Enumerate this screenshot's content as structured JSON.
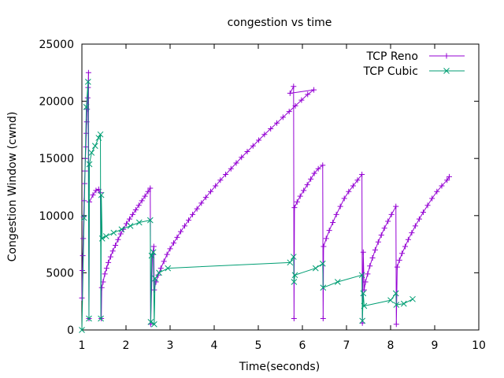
{
  "chart_data": {
    "type": "line",
    "title": "congestion vs time",
    "xlabel": "Time(seconds)",
    "ylabel": "Congestion Window (cwnd)",
    "xlim": [
      1,
      10
    ],
    "ylim": [
      0,
      25000
    ],
    "x_ticks": [
      1,
      2,
      3,
      4,
      5,
      6,
      7,
      8,
      9,
      10
    ],
    "y_ticks": [
      0,
      5000,
      10000,
      15000,
      20000,
      25000
    ],
    "legend_position": "top-right",
    "grid": false,
    "series": [
      {
        "name": "TCP Reno",
        "color": "#9400d3",
        "marker": "plus",
        "points": [
          [
            1.0,
            2800
          ],
          [
            1.01,
            5200
          ],
          [
            1.02,
            6500
          ],
          [
            1.03,
            8000
          ],
          [
            1.04,
            9900
          ],
          [
            1.05,
            11300
          ],
          [
            1.06,
            12800
          ],
          [
            1.07,
            13900
          ],
          [
            1.08,
            15000
          ],
          [
            1.09,
            16000
          ],
          [
            1.1,
            17200
          ],
          [
            1.11,
            18200
          ],
          [
            1.12,
            19300
          ],
          [
            1.13,
            20300
          ],
          [
            1.14,
            21200
          ],
          [
            1.15,
            22500
          ],
          [
            1.16,
            1000
          ],
          [
            1.17,
            11200
          ],
          [
            1.25,
            11800
          ],
          [
            1.32,
            12200
          ],
          [
            1.38,
            12300
          ],
          [
            1.42,
            12000
          ],
          [
            1.44,
            1000
          ],
          [
            1.45,
            3700
          ],
          [
            1.48,
            4200
          ],
          [
            1.52,
            4900
          ],
          [
            1.56,
            5400
          ],
          [
            1.6,
            5900
          ],
          [
            1.65,
            6400
          ],
          [
            1.7,
            6900
          ],
          [
            1.76,
            7400
          ],
          [
            1.82,
            7900
          ],
          [
            1.88,
            8400
          ],
          [
            1.94,
            8800
          ],
          [
            2.01,
            9300
          ],
          [
            2.08,
            9700
          ],
          [
            2.15,
            10100
          ],
          [
            2.22,
            10500
          ],
          [
            2.29,
            10900
          ],
          [
            2.36,
            11300
          ],
          [
            2.43,
            11700
          ],
          [
            2.5,
            12100
          ],
          [
            2.55,
            12400
          ],
          [
            2.56,
            500
          ],
          [
            2.6,
            6600
          ],
          [
            2.63,
            7300
          ],
          [
            2.64,
            3500
          ],
          [
            2.68,
            4200
          ],
          [
            2.73,
            4800
          ],
          [
            2.79,
            5400
          ],
          [
            2.86,
            6000
          ],
          [
            2.93,
            6600
          ],
          [
            3.0,
            7100
          ],
          [
            3.08,
            7600
          ],
          [
            3.16,
            8100
          ],
          [
            3.24,
            8600
          ],
          [
            3.33,
            9100
          ],
          [
            3.42,
            9600
          ],
          [
            3.51,
            10100
          ],
          [
            3.61,
            10600
          ],
          [
            3.71,
            11100
          ],
          [
            3.81,
            11600
          ],
          [
            3.92,
            12100
          ],
          [
            4.03,
            12600
          ],
          [
            4.14,
            13100
          ],
          [
            4.26,
            13600
          ],
          [
            4.38,
            14100
          ],
          [
            4.5,
            14600
          ],
          [
            4.62,
            15100
          ],
          [
            4.75,
            15600
          ],
          [
            4.88,
            16100
          ],
          [
            5.01,
            16600
          ],
          [
            5.14,
            17100
          ],
          [
            5.28,
            17600
          ],
          [
            5.42,
            18100
          ],
          [
            5.56,
            18600
          ],
          [
            5.7,
            19100
          ],
          [
            5.84,
            19600
          ],
          [
            5.98,
            20100
          ],
          [
            6.12,
            20600
          ],
          [
            6.26,
            21000
          ],
          [
            5.72,
            20700
          ],
          [
            5.8,
            21300
          ],
          [
            5.81,
            1000
          ],
          [
            5.82,
            10700
          ],
          [
            5.88,
            11200
          ],
          [
            5.95,
            11700
          ],
          [
            6.03,
            12200
          ],
          [
            6.11,
            12700
          ],
          [
            6.19,
            13200
          ],
          [
            6.27,
            13700
          ],
          [
            6.36,
            14100
          ],
          [
            6.46,
            14400
          ],
          [
            6.47,
            1000
          ],
          [
            6.48,
            7300
          ],
          [
            6.54,
            8000
          ],
          [
            6.61,
            8700
          ],
          [
            6.69,
            9400
          ],
          [
            6.77,
            10100
          ],
          [
            6.86,
            10800
          ],
          [
            6.95,
            11500
          ],
          [
            7.05,
            12100
          ],
          [
            7.15,
            12600
          ],
          [
            7.25,
            13100
          ],
          [
            7.35,
            13600
          ],
          [
            7.36,
            600
          ],
          [
            7.38,
            6800
          ],
          [
            7.4,
            3500
          ],
          [
            7.43,
            4200
          ],
          [
            7.48,
            4900
          ],
          [
            7.53,
            5600
          ],
          [
            7.59,
            6300
          ],
          [
            7.65,
            7000
          ],
          [
            7.72,
            7700
          ],
          [
            7.79,
            8300
          ],
          [
            7.86,
            8900
          ],
          [
            7.94,
            9500
          ],
          [
            8.02,
            10100
          ],
          [
            8.12,
            10800
          ],
          [
            8.13,
            500
          ],
          [
            8.15,
            5500
          ],
          [
            8.2,
            6100
          ],
          [
            8.26,
            6700
          ],
          [
            8.33,
            7300
          ],
          [
            8.4,
            7900
          ],
          [
            8.48,
            8500
          ],
          [
            8.56,
            9100
          ],
          [
            8.65,
            9700
          ],
          [
            8.74,
            10300
          ],
          [
            8.84,
            10900
          ],
          [
            8.94,
            11500
          ],
          [
            9.05,
            12100
          ],
          [
            9.16,
            12600
          ],
          [
            9.28,
            13100
          ],
          [
            9.33,
            13400
          ]
        ]
      },
      {
        "name": "TCP Cubic",
        "color": "#009e73",
        "marker": "x",
        "points": [
          [
            1.0,
            0
          ],
          [
            1.05,
            9800
          ],
          [
            1.1,
            19500
          ],
          [
            1.14,
            21700
          ],
          [
            1.16,
            1000
          ],
          [
            1.17,
            14500
          ],
          [
            1.22,
            15500
          ],
          [
            1.3,
            16100
          ],
          [
            1.38,
            16800
          ],
          [
            1.42,
            17100
          ],
          [
            1.43,
            1000
          ],
          [
            1.44,
            11800
          ],
          [
            1.46,
            8000
          ],
          [
            1.55,
            8200
          ],
          [
            1.72,
            8500
          ],
          [
            1.9,
            8800
          ],
          [
            2.1,
            9100
          ],
          [
            2.3,
            9400
          ],
          [
            2.55,
            9600
          ],
          [
            2.56,
            700
          ],
          [
            2.58,
            6500
          ],
          [
            2.62,
            6800
          ],
          [
            2.64,
            500
          ],
          [
            2.66,
            4500
          ],
          [
            2.75,
            5000
          ],
          [
            2.95,
            5400
          ],
          [
            5.72,
            5900
          ],
          [
            5.8,
            6400
          ],
          [
            5.81,
            4200
          ],
          [
            5.83,
            4800
          ],
          [
            6.3,
            5400
          ],
          [
            6.46,
            5800
          ],
          [
            6.47,
            3700
          ],
          [
            6.8,
            4200
          ],
          [
            7.35,
            4800
          ],
          [
            7.36,
            800
          ],
          [
            7.38,
            3200
          ],
          [
            7.4,
            2100
          ],
          [
            8.0,
            2600
          ],
          [
            8.12,
            3200
          ],
          [
            8.13,
            2200
          ],
          [
            8.3,
            2300
          ],
          [
            8.5,
            2700
          ]
        ]
      }
    ]
  }
}
